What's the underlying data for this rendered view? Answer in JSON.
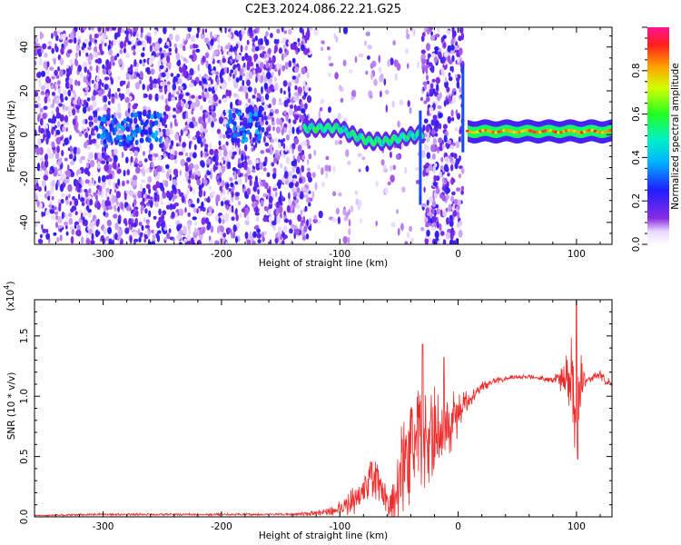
{
  "figure": {
    "title": "C2E3.2024.086.22.21.G25"
  },
  "chart_data": [
    {
      "type": "heatmap",
      "xlabel": "Height of straight line (km)",
      "ylabel": "Frequency (Hz)",
      "xlim": [
        -358,
        130
      ],
      "ylim": [
        -50,
        49
      ],
      "xticks": [
        "-300",
        "-200",
        "-100",
        "0",
        "100"
      ],
      "yticks": [
        "-40",
        "-20",
        "0",
        "20",
        "40"
      ],
      "colorbar": {
        "label": "Normalized spectral amplitude",
        "range": [
          0,
          1
        ],
        "ticks": [
          "0.0",
          "0.2",
          "0.4",
          "0.6",
          "0.8"
        ],
        "colormap": "rainbow (white → violet → blue → cyan → green → yellow → red → magenta)"
      },
      "features": {
        "noise_regions_km": [
          [
            -358,
            -125
          ],
          [
            -30,
            4
          ]
        ],
        "sparse_noise_km": [
          [
            -125,
            -30
          ]
        ],
        "ridge_center_hz": {
          "x": [
            -130,
            -100,
            -90,
            -75,
            -60,
            -45,
            -35,
            5,
            130
          ],
          "y": [
            3,
            3,
            0,
            -3,
            -3,
            -1,
            0,
            2,
            1
          ]
        },
        "vertical_spikes_km": [
          -32,
          4
        ],
        "high_amplitude_ridge_km": [
          8,
          130
        ]
      }
    },
    {
      "type": "line",
      "xlabel": "Height of straight line (km)",
      "ylabel": "SNR (10 * v/v)",
      "yscale_label": "(x10",
      "yscale_exp": "4",
      "xlim": [
        -358,
        130
      ],
      "ylim": [
        0,
        1.8
      ],
      "xticks": [
        "-300",
        "-200",
        "-100",
        "0",
        "100"
      ],
      "yticks": [
        "0.0",
        "0.5",
        "1.0",
        "1.5"
      ],
      "series": [
        {
          "color": "#ee2a2a",
          "envelope": {
            "x": [
              -358,
              -300,
              -250,
              -200,
              -150,
              -120,
              -105,
              -95,
              -85,
              -78,
              -72,
              -66,
              -60,
              -55,
              -50,
              -45,
              -40,
              -35,
              -30,
              -25,
              -20,
              -15,
              -10,
              -5,
              0,
              5,
              10,
              15,
              20,
              30,
              40,
              50,
              60,
              70,
              80,
              90,
              95,
              98,
              100,
              103,
              106,
              110,
              115,
              120,
              125,
              130
            ],
            "y": [
              0.01,
              0.02,
              0.02,
              0.02,
              0.02,
              0.03,
              0.05,
              0.1,
              0.15,
              0.25,
              0.4,
              0.2,
              0.1,
              0.15,
              0.35,
              0.45,
              0.55,
              0.6,
              0.62,
              0.65,
              0.68,
              0.7,
              0.75,
              0.8,
              0.85,
              0.92,
              0.98,
              1.04,
              1.08,
              1.12,
              1.15,
              1.16,
              1.16,
              1.15,
              1.14,
              1.14,
              1.13,
              1.1,
              1.12,
              1.12,
              1.14,
              1.14,
              1.16,
              1.18,
              1.12,
              1.1
            ],
            "noise": [
              0.005,
              0.01,
              0.01,
              0.01,
              0.01,
              0.02,
              0.04,
              0.1,
              0.12,
              0.15,
              0.25,
              0.15,
              0.15,
              0.25,
              0.35,
              0.4,
              0.45,
              0.45,
              0.45,
              0.4,
              0.4,
              0.35,
              0.3,
              0.25,
              0.18,
              0.12,
              0.08,
              0.05,
              0.04,
              0.03,
              0.025,
              0.02,
              0.02,
              0.02,
              0.03,
              0.15,
              0.35,
              0.5,
              0.65,
              0.35,
              0.1,
              0.04,
              0.04,
              0.04,
              0.04,
              0.04
            ]
          },
          "peaks": [
            [
              -30,
              1.43
            ],
            [
              -12,
              1.32
            ],
            [
              100,
              1.8
            ],
            [
              101,
              0.48
            ]
          ]
        }
      ]
    }
  ]
}
